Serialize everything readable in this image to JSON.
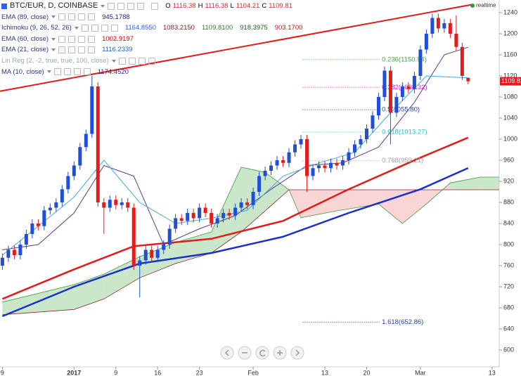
{
  "legend": {
    "symbol": "BTC/EUR, D, COINBASE",
    "ohlc_labels": [
      "O",
      "H",
      "L",
      "C"
    ],
    "indicators": [
      {
        "name": "EMA (89, close)",
        "values": [
          "945.1788"
        ]
      },
      {
        "name": "Ichimoku (9, 26, 52, 26)",
        "values": [
          "1164.8550",
          "1083.2150",
          "1109.8100",
          "918.3975",
          "903.1700"
        ]
      },
      {
        "name": "EMA (60, close)",
        "values": [
          "1002.9197"
        ]
      },
      {
        "name": "EMA (21, close)",
        "values": [
          "1116.2339"
        ]
      },
      {
        "name": "Lin Reg (2, -2, true, true, 100, close)"
      },
      {
        "name": "MA (10, close)",
        "values": [
          "1174.4520"
        ]
      }
    ]
  },
  "realtime": "realtime",
  "chart_data": {
    "type": "candlestick",
    "up_color": "#1f4fd6",
    "down_color": "#e31b1b",
    "open": [
      760,
      775,
      790,
      780,
      800,
      820,
      840,
      835,
      865,
      870,
      880,
      905,
      930,
      950,
      985,
      1010,
      1100,
      880,
      870,
      885,
      875,
      880,
      870,
      760,
      770,
      790,
      775,
      790,
      800,
      830,
      850,
      845,
      860,
      850,
      870,
      860,
      840,
      850,
      860,
      855,
      870,
      880,
      875,
      900,
      930,
      940,
      950,
      960,
      955,
      975,
      990,
      1000,
      930,
      945,
      950,
      945,
      955,
      950,
      960,
      975,
      990,
      1000,
      1020,
      1045,
      1080,
      1130,
      1050,
      1080,
      1100,
      1095,
      1120,
      1170,
      1200,
      1230,
      1210,
      1220,
      1200,
      1175,
      1116.38
    ],
    "high": [
      783,
      798,
      798,
      808,
      828,
      848,
      848,
      873,
      878,
      888,
      913,
      938,
      958,
      993,
      1018,
      1120,
      1108,
      888,
      893,
      893,
      888,
      888,
      878,
      778,
      798,
      798,
      798,
      808,
      838,
      858,
      858,
      868,
      868,
      878,
      878,
      868,
      858,
      868,
      868,
      878,
      888,
      888,
      908,
      938,
      948,
      958,
      968,
      968,
      983,
      998,
      1008,
      1008,
      953,
      958,
      958,
      963,
      963,
      968,
      983,
      998,
      1008,
      1028,
      1053,
      1088,
      1138,
      1138,
      1088,
      1108,
      1108,
      1128,
      1178,
      1208,
      1238,
      1238,
      1228,
      1228,
      1235,
      1183,
      1116.38
    ],
    "low": [
      752,
      767,
      772,
      772,
      792,
      812,
      827,
      827,
      857,
      862,
      872,
      897,
      922,
      942,
      977,
      1002,
      872,
      820,
      862,
      867,
      867,
      862,
      752,
      700,
      762,
      767,
      767,
      782,
      792,
      822,
      837,
      837,
      842,
      842,
      852,
      832,
      832,
      842,
      847,
      847,
      862,
      867,
      867,
      892,
      922,
      932,
      942,
      947,
      947,
      967,
      982,
      900,
      922,
      937,
      937,
      937,
      942,
      942,
      952,
      967,
      982,
      992,
      1012,
      1037,
      1072,
      990,
      1042,
      1072,
      1087,
      1087,
      1112,
      1162,
      1192,
      1202,
      1202,
      1192,
      1167,
      1112,
      1104.21
    ],
    "close": [
      775,
      790,
      780,
      800,
      820,
      840,
      835,
      865,
      870,
      880,
      905,
      930,
      950,
      985,
      1010,
      1100,
      880,
      870,
      885,
      875,
      880,
      870,
      760,
      770,
      790,
      775,
      790,
      800,
      830,
      850,
      845,
      860,
      850,
      870,
      860,
      840,
      850,
      860,
      855,
      870,
      880,
      875,
      900,
      930,
      940,
      950,
      960,
      955,
      975,
      990,
      1000,
      930,
      945,
      950,
      945,
      955,
      950,
      960,
      975,
      990,
      1000,
      1020,
      1045,
      1080,
      1130,
      1050,
      1080,
      1100,
      1095,
      1120,
      1170,
      1200,
      1230,
      1210,
      1220,
      1200,
      1175,
      1120,
      1109.81
    ],
    "xlim": [
      -0.4,
      83.2
    ],
    "xticks": [
      {
        "value": 0,
        "label": "9"
      },
      {
        "value": 12,
        "label": "2017"
      },
      {
        "value": 19,
        "label": "9"
      },
      {
        "value": 26,
        "label": "16"
      },
      {
        "value": 33,
        "label": "23"
      },
      {
        "value": 42,
        "label": "Feb"
      },
      {
        "value": 54,
        "label": "13"
      },
      {
        "value": 61,
        "label": "20"
      },
      {
        "value": 70,
        "label": "Mar"
      },
      {
        "value": 82,
        "label": "13"
      }
    ],
    "ylim": [
      568,
      1264
    ],
    "yticks": [
      600,
      640,
      680,
      720,
      760,
      800,
      840,
      880,
      920,
      960,
      1000,
      1040,
      1080,
      1120,
      1160,
      1200,
      1240
    ],
    "cloud": {
      "up_color": "#9fd49f",
      "down_color": "#f6b3b3",
      "a_color": "#3f9a3f",
      "b_color": "#8b2a2a",
      "x": [
        0,
        12,
        17,
        23,
        29,
        35,
        40,
        44,
        48,
        50,
        56,
        63,
        67,
        71,
        75,
        80,
        83.2
      ],
      "span_a": [
        691,
        724,
        744,
        777,
        804,
        824,
        947,
        937,
        904,
        851,
        864,
        877,
        840,
        877,
        917,
        928,
        928
      ],
      "span_b": [
        667,
        677,
        697,
        737,
        764,
        784,
        824,
        864,
        904,
        904,
        904,
        904,
        904,
        904,
        904,
        904,
        904
      ]
    },
    "overlays": [
      {
        "color": "#1a2fd0",
        "width": 2.5,
        "x": [
          0,
          12,
          23,
          35,
          47,
          58,
          70,
          78
        ],
        "values": [
          664,
          720,
          764,
          784,
          815,
          860,
          905,
          945.18
        ]
      },
      {
        "color": "#e31b1b",
        "width": 2.5,
        "x": [
          0,
          12,
          22,
          35,
          47,
          58,
          70,
          78
        ],
        "values": [
          697,
          753,
          797,
          811,
          845,
          905,
          965,
          1002.92
        ]
      },
      {
        "color": "#5a3c8c",
        "width": 1,
        "x": [
          0,
          6,
          12,
          17,
          22,
          27,
          33,
          39,
          45,
          51,
          57,
          63,
          69,
          74,
          78
        ],
        "values": [
          790,
          800,
          860,
          950,
          930,
          800,
          830,
          855,
          905,
          950,
          955,
          985,
          1070,
          1160,
          1174.45
        ]
      },
      {
        "color": "#3fa9e6",
        "width": 1,
        "x": [
          0,
          12,
          17,
          23,
          29,
          35,
          41,
          47,
          53,
          59,
          65,
          71,
          78
        ],
        "values": [
          780,
          890,
          960,
          880,
          840,
          850,
          865,
          930,
          955,
          975,
          1050,
          1120,
          1116.23
        ]
      }
    ],
    "fib_x": [
      50.3,
      63.2
    ],
    "fib_levels": [
      {
        "label": "0.236(1150.94)",
        "value": 1150.94,
        "color": "#3faa3f"
      },
      {
        "label": "0.382(1098.32)",
        "value": 1098.32,
        "color": "#d81bd8"
      },
      {
        "label": "0.5(1055.80)",
        "value": 1055.8,
        "color": "#2a3fb0"
      },
      {
        "label": "0.618(1013.27)",
        "value": 1013.27,
        "color": "#19c4cc"
      },
      {
        "label": "0.768(959.21)",
        "value": 959.21,
        "color": "#9e9e9e"
      },
      {
        "label": "1.618(652.86)",
        "value": 652.86,
        "color": "#2a3fb0"
      }
    ],
    "trendline": {
      "color": "#e31b1b",
      "x": [
        -0.4,
        78.5
      ],
      "values": [
        1091,
        1255
      ]
    }
  }
}
